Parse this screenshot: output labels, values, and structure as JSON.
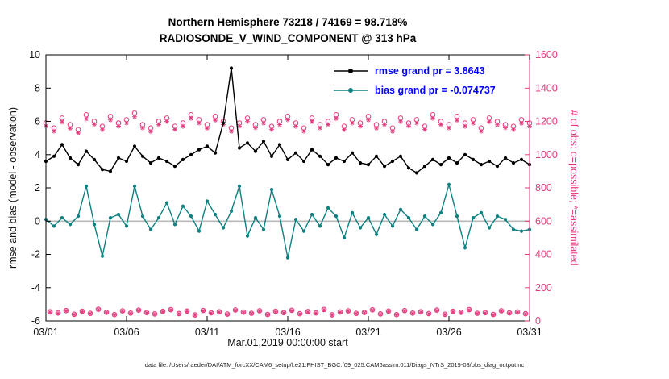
{
  "title": {
    "line1": "Northern Hemisphere 73218 / 74169 = 98.718%",
    "line2": "RADIOSONDE_V_WIND_COMPONENT @ 313 hPa"
  },
  "legend": {
    "text_color": "#0000ff",
    "items": [
      {
        "label": "rmse grand pr = 3.8643",
        "color": "#000000"
      },
      {
        "label": "bias grand pr = -0.074737",
        "color": "#0d8080"
      }
    ]
  },
  "axes": {
    "x": {
      "label": "Mar.01,2019 00:00:00 start",
      "ticks": [
        {
          "value": 1,
          "label": "03/01"
        },
        {
          "value": 6,
          "label": "03/06"
        },
        {
          "value": 11,
          "label": "03/11"
        },
        {
          "value": 16,
          "label": "03/16"
        },
        {
          "value": 21,
          "label": "03/21"
        },
        {
          "value": 26,
          "label": "03/26"
        },
        {
          "value": 31,
          "label": "03/31"
        }
      ]
    },
    "left": {
      "label": "rmse and bias (model - observation)",
      "range": [
        -6,
        10
      ],
      "ticks": [
        -6,
        -4,
        -2,
        0,
        2,
        4,
        6,
        8,
        10
      ]
    },
    "right": {
      "label": "# of obs: o=possible; *=assimilated",
      "range": [
        0,
        1600
      ],
      "ticks": [
        0,
        200,
        400,
        600,
        800,
        1000,
        1200,
        1400,
        1600
      ]
    }
  },
  "colors": {
    "counts": "#e13a7d",
    "bias": "#0d8080",
    "rmse": "#000000",
    "zero_line": "#b8b8b8",
    "legend_text": "#0000ff"
  },
  "footer": "data file: /Users/raeder/DAI/ATM_forcXX/CAM6_setup/f.e21.FHIST_BGC.f09_025.CAM6assim.011/Diags_NTrS_2019-03/obs_diag_output.nc",
  "chart_data": {
    "type": "line",
    "title": "Northern Hemisphere 73218 / 74169 = 98.718% — RADIOSONDE_V_WIND_COMPONENT @ 313 hPa",
    "x_unit": "day of March 2019 (12-hourly bins; 06/18Z bins on intermediate grid)",
    "x_range": [
      1,
      31
    ],
    "reference_line_y": 0,
    "stats": {
      "rmse_grand": 3.8643,
      "bias_grand": -0.074737,
      "n_assimilated_total": 73218,
      "n_possible_total": 74169,
      "percent_assimilated": 98.718
    },
    "x_grids": {
      "main": [
        1,
        1.5,
        2,
        2.5,
        3,
        3.5,
        4,
        4.5,
        5,
        5.5,
        6,
        6.5,
        7,
        7.5,
        8,
        8.5,
        9,
        9.5,
        10,
        10.5,
        11,
        11.5,
        12,
        12.5,
        13,
        13.5,
        14,
        14.5,
        15,
        15.5,
        16,
        16.5,
        17,
        17.5,
        18,
        18.5,
        19,
        19.5,
        20,
        20.5,
        21,
        21.5,
        22,
        22.5,
        23,
        23.5,
        24,
        24.5,
        25,
        25.5,
        26,
        26.5,
        27,
        27.5,
        28,
        28.5,
        29,
        29.5,
        30,
        30.5,
        31
      ],
      "inter": [
        1.25,
        1.75,
        2.25,
        2.75,
        3.25,
        3.75,
        4.25,
        4.75,
        5.25,
        5.75,
        6.25,
        6.75,
        7.25,
        7.75,
        8.25,
        8.75,
        9.25,
        9.75,
        10.25,
        10.75,
        11.25,
        11.75,
        12.25,
        12.75,
        13.25,
        13.75,
        14.25,
        14.75,
        15.25,
        15.75,
        16.25,
        16.75,
        17.25,
        17.75,
        18.25,
        18.75,
        19.25,
        19.75,
        20.25,
        20.75,
        21.25,
        21.75,
        22.25,
        22.75,
        23.25,
        23.75,
        24.25,
        24.75,
        25.25,
        25.75,
        26.25,
        26.75,
        27.25,
        27.75,
        28.25,
        28.75,
        29.25,
        29.75,
        30.25,
        30.75
      ]
    },
    "series": [
      {
        "name": "n_possible (00/12Z)",
        "style": "scatter",
        "marker": "o",
        "axis": "right",
        "x": "main",
        "color": "#e13a7d",
        "values": [
          1190,
          1160,
          1220,
          1180,
          1150,
          1240,
          1200,
          1170,
          1230,
          1190,
          1210,
          1250,
          1180,
          1160,
          1200,
          1220,
          1170,
          1190,
          1240,
          1210,
          1180,
          1230,
          1200,
          1160,
          1190,
          1220,
          1180,
          1210,
          1170,
          1200,
          1230,
          1190,
          1160,
          1220,
          1180,
          1200,
          1240,
          1170,
          1210,
          1190,
          1230,
          1180,
          1200,
          1160,
          1220,
          1190,
          1210,
          1170,
          1240,
          1200,
          1180,
          1230,
          1190,
          1210,
          1160,
          1220,
          1200,
          1180,
          1170,
          1210,
          1190
        ]
      },
      {
        "name": "n_assimilated (00/12Z)",
        "style": "scatter",
        "marker": "*",
        "axis": "right",
        "x": "main",
        "color": "#e13a7d",
        "values": [
          1172,
          1141,
          1196,
          1158,
          1130,
          1215,
          1182,
          1150,
          1208,
          1171,
          1190,
          1228,
          1160,
          1139,
          1181,
          1199,
          1152,
          1170,
          1218,
          1190,
          1159,
          1207,
          1181,
          1140,
          1172,
          1199,
          1161,
          1189,
          1151,
          1180,
          1209,
          1170,
          1141,
          1198,
          1160,
          1181,
          1217,
          1150,
          1190,
          1171,
          1208,
          1159,
          1181,
          1140,
          1198,
          1172,
          1190,
          1151,
          1218,
          1181,
          1160,
          1207,
          1170,
          1189,
          1141,
          1197,
          1179,
          1161,
          1150,
          1188,
          1170
        ]
      },
      {
        "name": "n_possible (06/18Z)",
        "style": "scatter",
        "marker": "o",
        "axis": "right",
        "x": "inter",
        "color": "#e13a7d",
        "values": [
          55,
          48,
          62,
          40,
          58,
          45,
          70,
          52,
          38,
          60,
          47,
          65,
          50,
          42,
          57,
          68,
          44,
          59,
          36,
          63,
          49,
          55,
          41,
          66,
          53,
          46,
          61,
          39,
          58,
          50,
          64,
          43,
          56,
          48,
          69,
          37,
          54,
          60,
          45,
          51,
          67,
          42,
          59,
          38,
          62,
          47,
          55,
          44,
          65,
          40,
          57,
          52,
          68,
          46,
          50,
          39,
          61,
          48,
          54,
          43
        ]
      },
      {
        "name": "n_assimilated (06/18Z)",
        "style": "scatter",
        "marker": "*",
        "axis": "right",
        "x": "inter",
        "color": "#e13a7d",
        "values": [
          52,
          45,
          60,
          38,
          55,
          43,
          67,
          50,
          36,
          57,
          45,
          62,
          48,
          40,
          54,
          65,
          42,
          56,
          34,
          60,
          47,
          52,
          39,
          63,
          50,
          44,
          58,
          37,
          55,
          48,
          61,
          41,
          53,
          46,
          66,
          35,
          51,
          57,
          43,
          48,
          64,
          40,
          56,
          36,
          59,
          45,
          52,
          42,
          62,
          38,
          54,
          50,
          65,
          44,
          47,
          37,
          58,
          46,
          51,
          41
        ]
      },
      {
        "name": "bias",
        "style": "line",
        "marker": ".",
        "axis": "left",
        "x": "main",
        "color": "#0d8080",
        "values": [
          0.1,
          -0.3,
          0.2,
          -0.2,
          0.3,
          2.1,
          -0.2,
          -2.1,
          0.2,
          0.4,
          -0.3,
          2.1,
          0.3,
          -0.5,
          0.2,
          1.1,
          -0.2,
          0.9,
          0.3,
          -0.6,
          1.2,
          0.4,
          -0.4,
          0.6,
          2.1,
          -0.9,
          0.2,
          -0.5,
          1.9,
          0.3,
          -2.2,
          0.1,
          -0.6,
          0.4,
          -0.3,
          0.8,
          0.3,
          -1.0,
          0.5,
          -0.4,
          0.2,
          -0.8,
          0.4,
          -0.3,
          0.7,
          0.2,
          -0.5,
          0.3,
          -0.2,
          0.5,
          2.2,
          0.3,
          -1.6,
          0.2,
          0.5,
          -0.4,
          0.3,
          0.1,
          -0.5,
          -0.6,
          -0.5
        ]
      },
      {
        "name": "rmse",
        "style": "line",
        "marker": ".",
        "axis": "left",
        "x": "main",
        "color": "#000000",
        "values": [
          3.6,
          3.9,
          4.6,
          3.8,
          3.4,
          4.2,
          3.7,
          3.1,
          3.0,
          3.8,
          3.6,
          4.5,
          3.9,
          3.5,
          3.8,
          3.6,
          3.3,
          3.7,
          4.0,
          4.3,
          4.5,
          4.1,
          5.9,
          9.2,
          4.4,
          4.7,
          4.2,
          4.8,
          3.9,
          4.6,
          3.7,
          4.1,
          3.6,
          4.3,
          3.9,
          3.4,
          3.8,
          3.6,
          4.1,
          3.5,
          3.4,
          3.9,
          3.3,
          3.6,
          3.9,
          3.2,
          2.9,
          3.3,
          3.7,
          3.4,
          3.8,
          3.5,
          4.0,
          3.7,
          3.4,
          3.6,
          3.3,
          3.8,
          3.5,
          3.7,
          3.4
        ]
      }
    ]
  }
}
